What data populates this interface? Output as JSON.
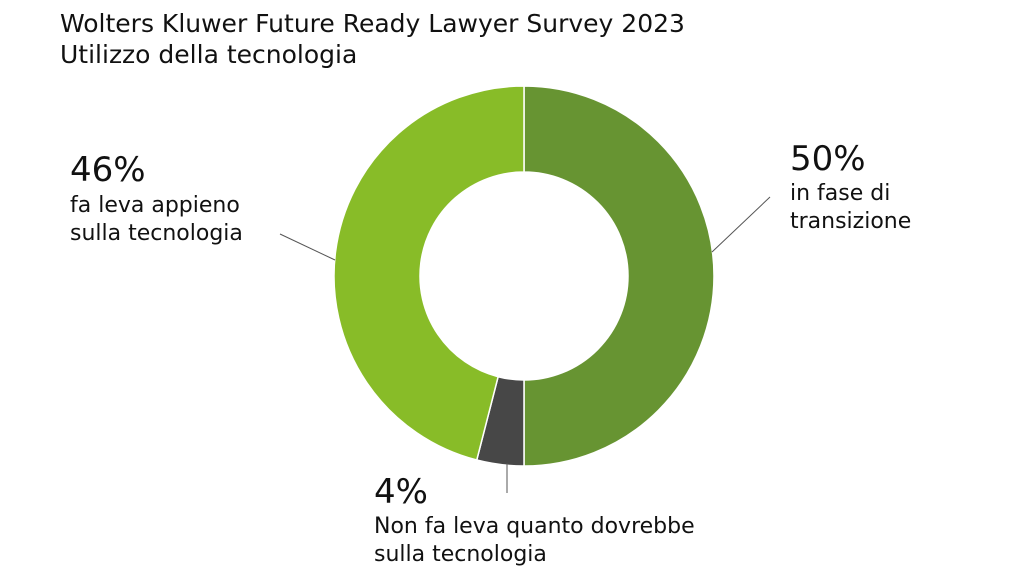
{
  "title": "Wolters Kluwer Future Ready Lawyer Survey 2023",
  "subtitle": "Utilizzo della tecnologia",
  "chart_data": {
    "type": "pie",
    "donut": true,
    "slices": [
      {
        "value": 50,
        "percent_label": "50%",
        "label_lines": [
          "in fase di",
          "transizione"
        ],
        "color": "#679432"
      },
      {
        "value": 4,
        "percent_label": "4%",
        "label_lines": [
          "Non fa leva quanto dovrebbe",
          "sulla tecnologia"
        ],
        "color": "#474747"
      },
      {
        "value": 46,
        "percent_label": "46%",
        "label_lines": [
          "fa leva appieno",
          "sulla tecnologia"
        ],
        "color": "#88bc28"
      }
    ]
  }
}
